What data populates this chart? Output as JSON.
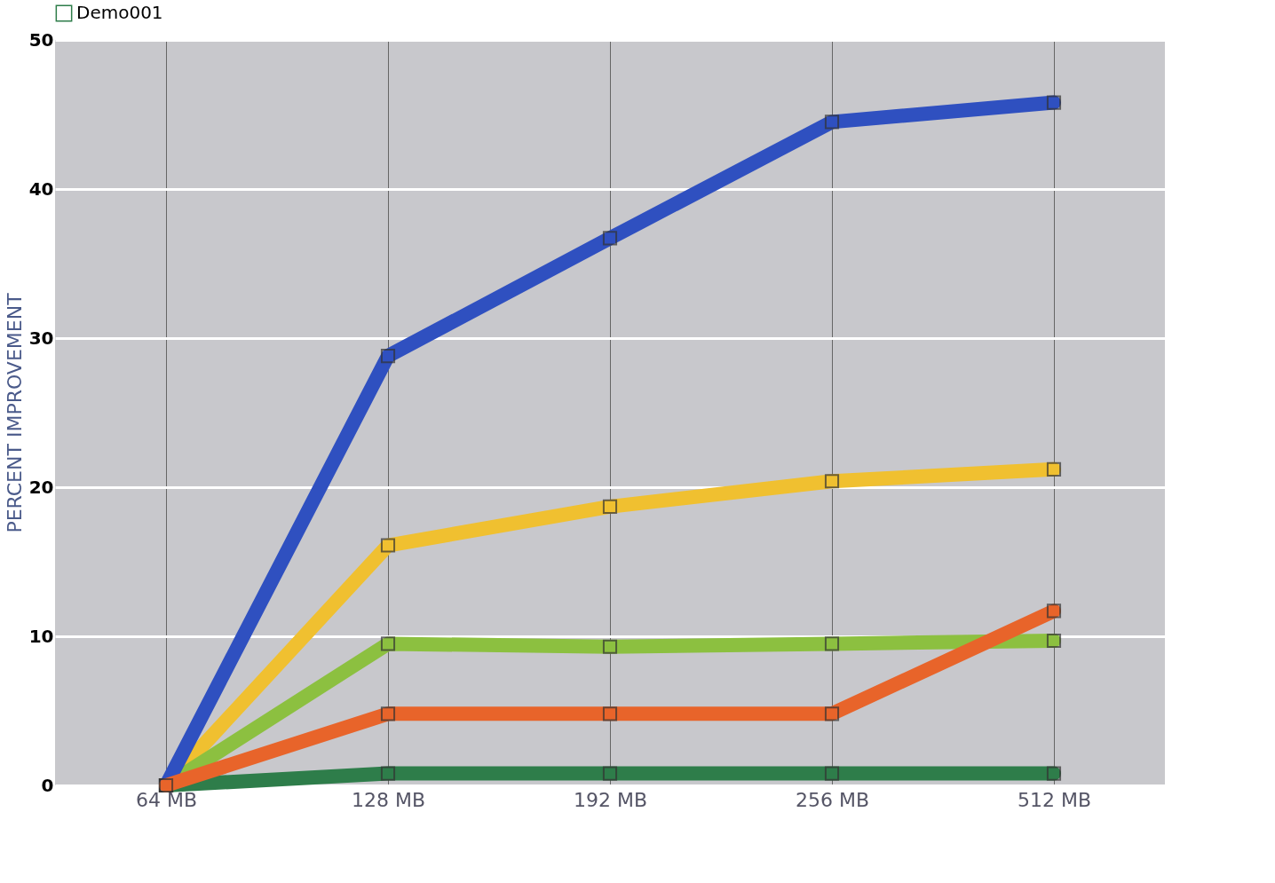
{
  "chart_data": {
    "type": "line",
    "ylabel": "PERCENT IMPROVEMENT",
    "categories": [
      "64 MB",
      "128 MB",
      "192 MB",
      "256 MB",
      "512 MB"
    ],
    "series": [
      {
        "color": "#f0c030",
        "values": [
          0,
          16.1,
          18.7,
          20.4,
          21.2
        ]
      },
      {
        "name": "Demo001",
        "color": "#2e7d4a",
        "values": [
          0,
          0.8,
          0.8,
          0.8,
          0.8
        ]
      },
      {
        "color": "#8cc040",
        "values": [
          0,
          9.5,
          9.3,
          9.5,
          9.7
        ]
      },
      {
        "color": "#2f50c0",
        "values": [
          0,
          28.8,
          36.7,
          44.5,
          45.8
        ]
      },
      {
        "color": "#e8642a",
        "values": [
          0,
          4.8,
          4.8,
          4.8,
          11.7
        ]
      }
    ],
    "ylim": [
      0,
      50
    ],
    "yticks": [
      0,
      10,
      20,
      30,
      40,
      50
    ],
    "grid": true,
    "legend": "top",
    "marker": "square",
    "line_style": "solid"
  }
}
